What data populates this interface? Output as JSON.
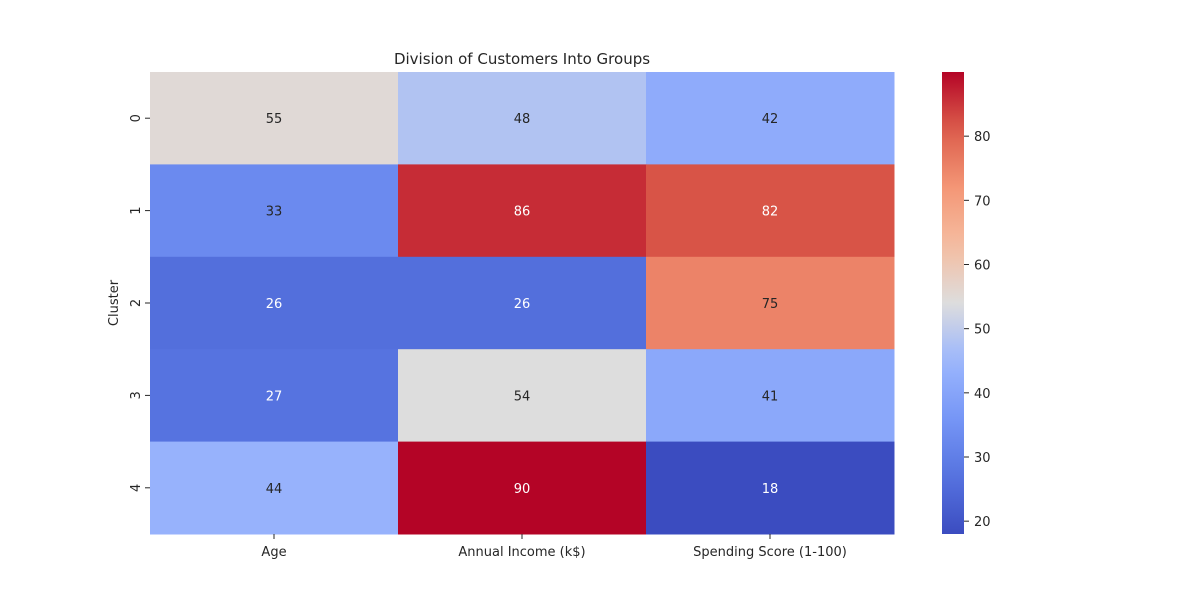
{
  "chart_data": {
    "type": "heatmap",
    "title": "Division of Customers Into Groups",
    "xlabel": "",
    "ylabel": "Cluster",
    "x_categories": [
      "Age",
      "Annual Income (k$)",
      "Spending Score (1-100)"
    ],
    "y_categories": [
      "0",
      "1",
      "2",
      "3",
      "4"
    ],
    "values": [
      [
        55,
        48,
        42
      ],
      [
        33,
        86,
        82
      ],
      [
        26,
        26,
        75
      ],
      [
        27,
        54,
        41
      ],
      [
        44,
        90,
        18
      ]
    ],
    "colormap": "coolwarm",
    "color_range": [
      18,
      90
    ],
    "colorbar_ticks": [
      20,
      30,
      40,
      50,
      60,
      70,
      80
    ],
    "annotations": true,
    "grid": false,
    "legend": "colorbar-right"
  }
}
